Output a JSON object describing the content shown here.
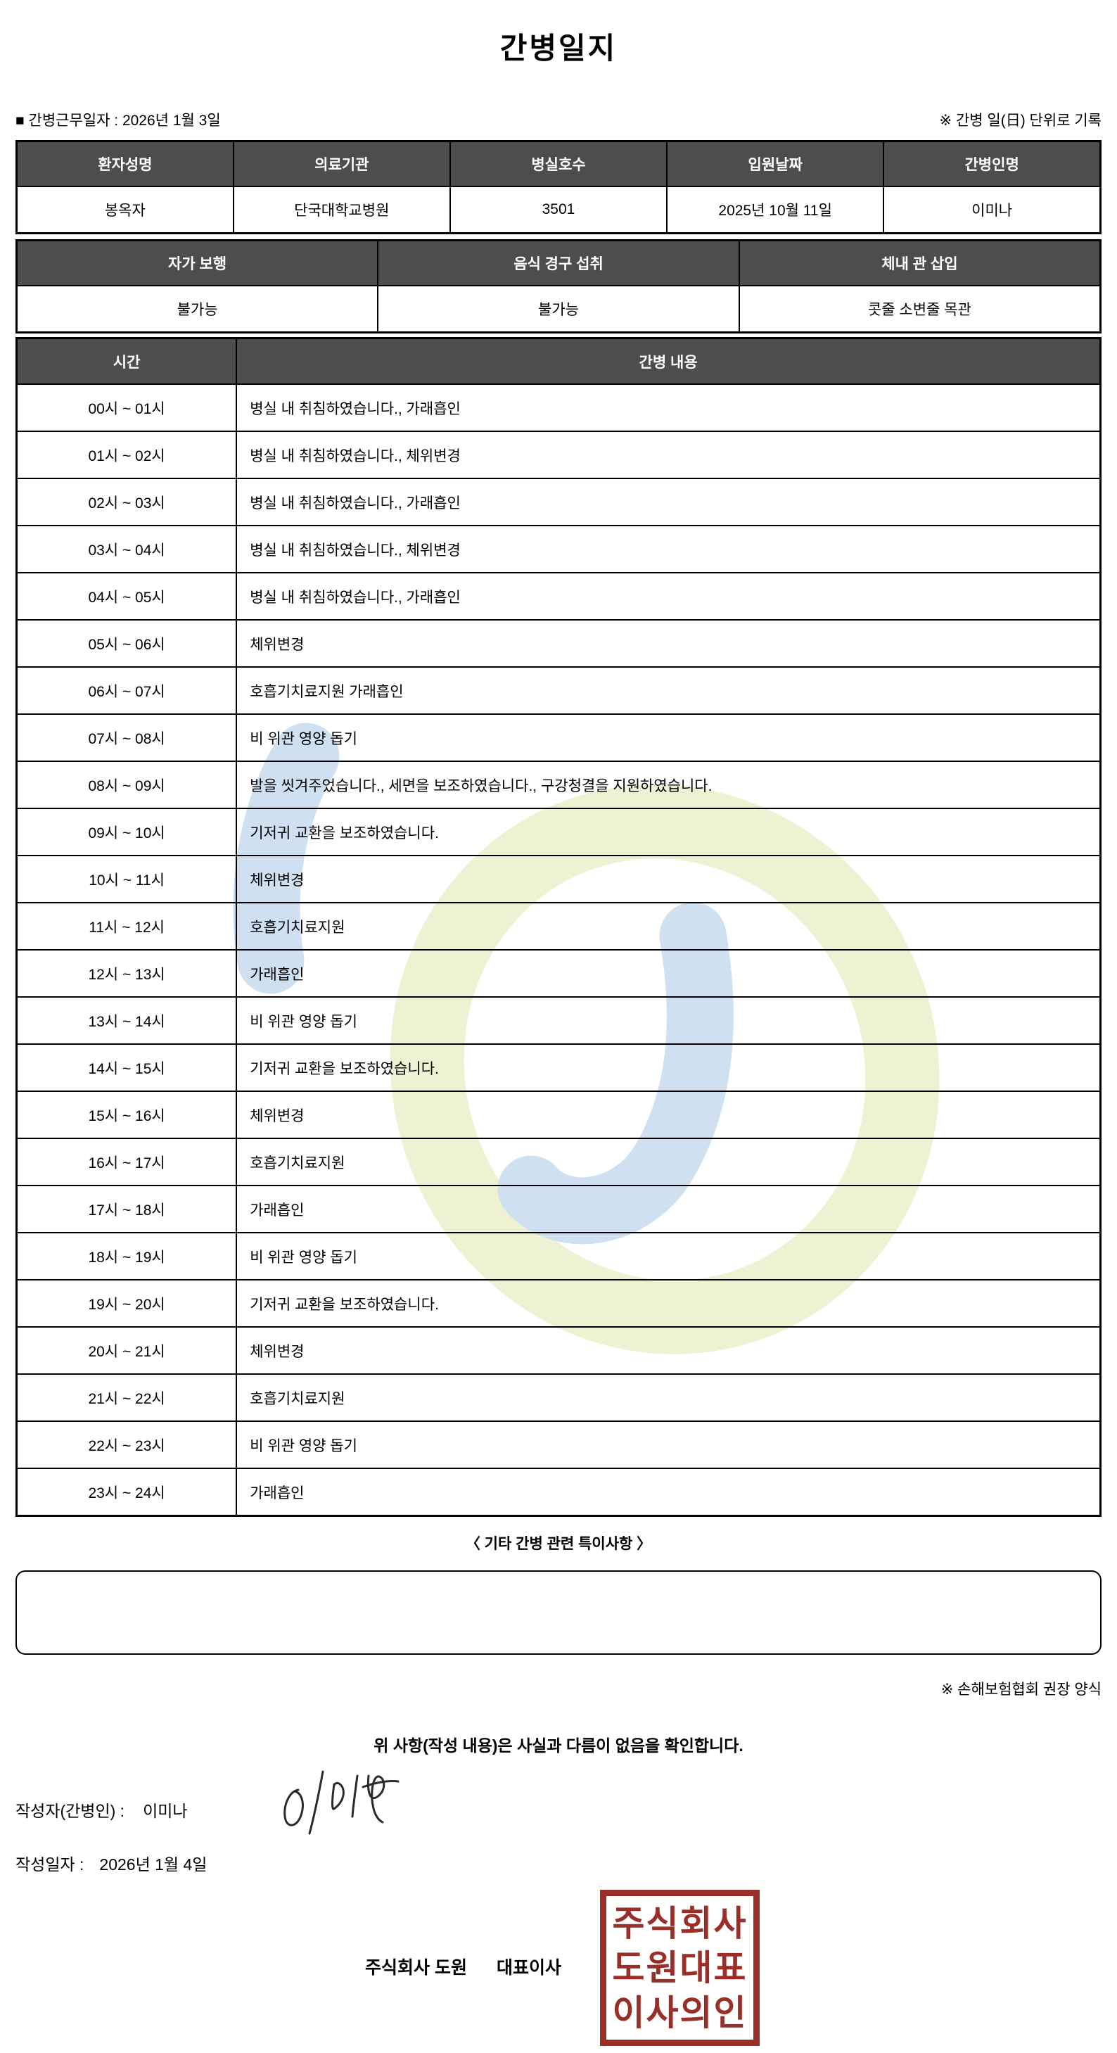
{
  "title": "간병일지",
  "meta": {
    "work_date_label": "■ 간병근무일자  :",
    "work_date": "2026년 1월 3일",
    "unit_note": "※ 간병 일(日) 단위로 기록"
  },
  "patient_table": {
    "headers": [
      "환자성명",
      "의료기관",
      "병실호수",
      "입원날짜",
      "간병인명"
    ],
    "values": [
      "봉옥자",
      "단국대학교병원",
      "3501",
      "2025년 10월 11일",
      "이미나"
    ]
  },
  "status_table": {
    "headers": [
      "자가 보행",
      "음식 경구 섭취",
      "체내 관 삽입"
    ],
    "values": [
      "불가능",
      "불가능",
      "콧줄 소변줄 목관"
    ]
  },
  "schedule_table": {
    "headers": [
      "시간",
      "간병 내용"
    ],
    "rows": [
      {
        "time": "00시 ~ 01시",
        "content": "병실 내 취침하였습니다., 가래흡인"
      },
      {
        "time": "01시 ~ 02시",
        "content": "병실 내 취침하였습니다., 체위변경"
      },
      {
        "time": "02시 ~ 03시",
        "content": "병실 내 취침하였습니다., 가래흡인"
      },
      {
        "time": "03시 ~ 04시",
        "content": "병실 내 취침하였습니다., 체위변경"
      },
      {
        "time": "04시 ~ 05시",
        "content": "병실 내 취침하였습니다., 가래흡인"
      },
      {
        "time": "05시 ~ 06시",
        "content": "체위변경"
      },
      {
        "time": "06시 ~ 07시",
        "content": "호흡기치료지원 가래흡인"
      },
      {
        "time": "07시 ~ 08시",
        "content": "비 위관 영양 돕기"
      },
      {
        "time": "08시 ~ 09시",
        "content": "발을 씻겨주었습니다., 세면을 보조하였습니다., 구강청결을 지원하였습니다."
      },
      {
        "time": "09시 ~ 10시",
        "content": "기저귀 교환을 보조하였습니다."
      },
      {
        "time": "10시 ~ 11시",
        "content": "체위변경"
      },
      {
        "time": "11시 ~ 12시",
        "content": "호흡기치료지원"
      },
      {
        "time": "12시 ~ 13시",
        "content": "가래흡인"
      },
      {
        "time": "13시 ~ 14시",
        "content": "비 위관 영양 돕기"
      },
      {
        "time": "14시 ~ 15시",
        "content": "기저귀 교환을 보조하였습니다."
      },
      {
        "time": "15시 ~ 16시",
        "content": "체위변경"
      },
      {
        "time": "16시 ~ 17시",
        "content": "호흡기치료지원"
      },
      {
        "time": "17시 ~ 18시",
        "content": "가래흡인"
      },
      {
        "time": "18시 ~ 19시",
        "content": "비 위관 영양 돕기"
      },
      {
        "time": "19시 ~ 20시",
        "content": "기저귀 교환을 보조하였습니다."
      },
      {
        "time": "20시 ~ 21시",
        "content": "체위변경"
      },
      {
        "time": "21시 ~ 22시",
        "content": "호흡기치료지원"
      },
      {
        "time": "22시 ~ 23시",
        "content": "비 위관 영양 돕기"
      },
      {
        "time": "23시 ~ 24시",
        "content": "가래흡인"
      }
    ]
  },
  "notes": {
    "heading": "〈 기타 간병 관련 특이사항 〉",
    "content": "",
    "form_note": "※ 손해보험협회 권장 양식"
  },
  "footer": {
    "confirmation": "위 사항(작성 내용)은 사실과 다름이 없음을 확인합니다.",
    "writer_label": "작성자(간병인) :",
    "writer_name": "이미나",
    "date_label": "작성일자 :",
    "date": "2026년 1월 4일",
    "company": "주식회사 도원",
    "ceo": "대표이사",
    "stamp_lines": [
      "주식회사",
      "도원대표",
      "이사의인"
    ]
  },
  "colors": {
    "table_header_bg": "#4d4d4d",
    "table_header_text": "#ffffff",
    "table_border": "#000000",
    "stamp_red": "#9a2f2a",
    "watermark_yellow": "#eef2d2",
    "watermark_blue": "#cfe0f0"
  }
}
